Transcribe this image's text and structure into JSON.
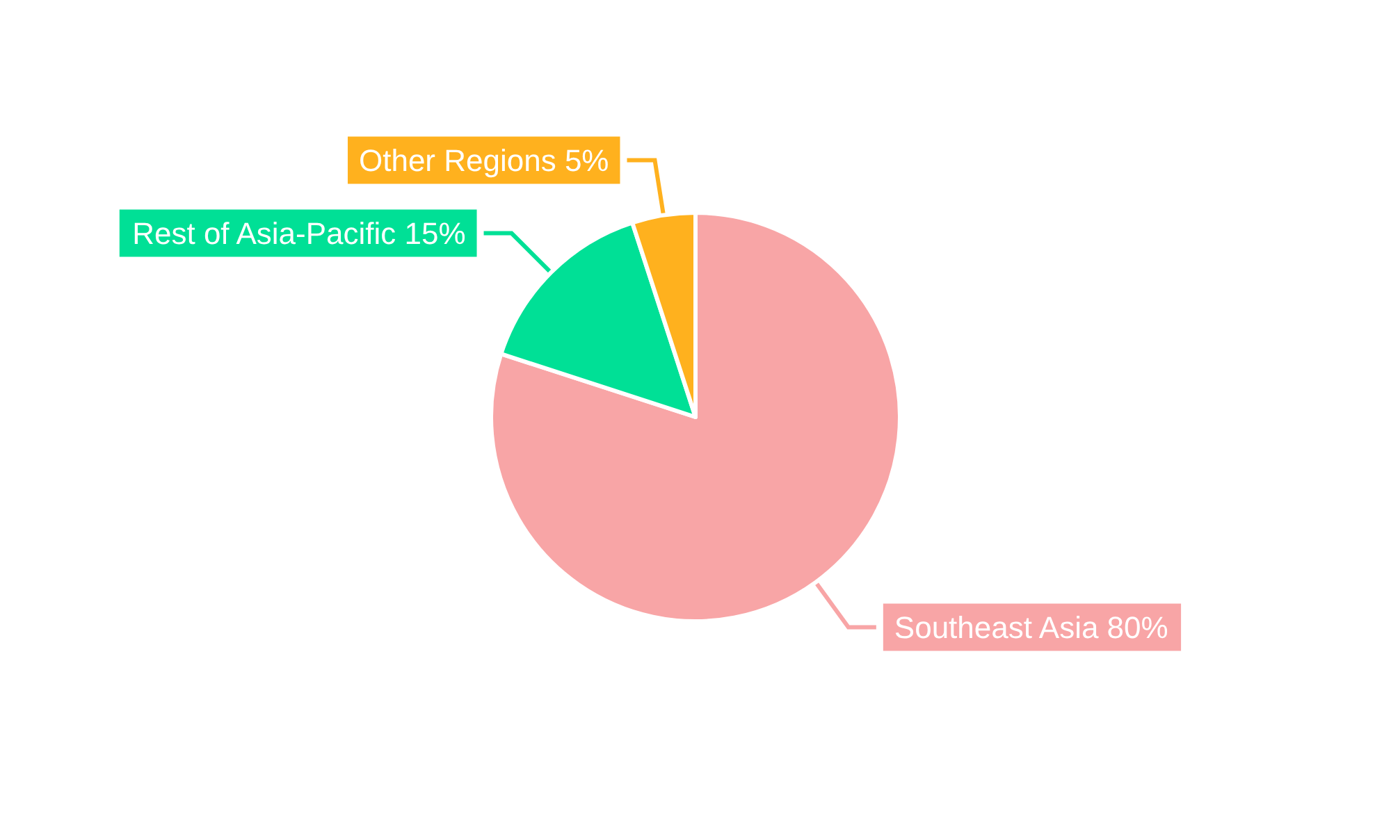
{
  "chart_data": {
    "type": "pie",
    "categories": [
      "Southeast Asia",
      "Rest of Asia-Pacific",
      "Other Regions"
    ],
    "values": [
      80,
      15,
      5
    ],
    "value_labels": [
      "80%",
      "15%",
      "5%"
    ],
    "colors": [
      "#f8a5a6",
      "#00e096",
      "#ffb11e"
    ],
    "legend": false
  }
}
